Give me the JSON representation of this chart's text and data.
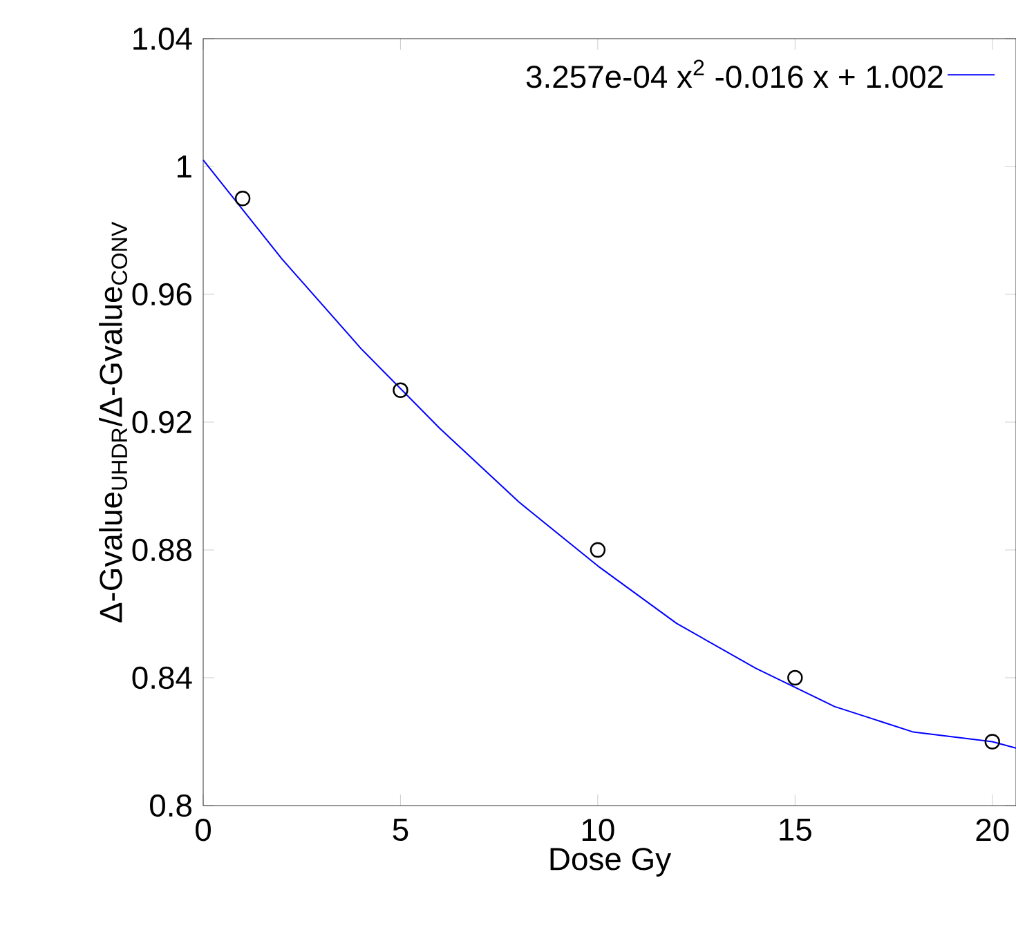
{
  "chart_data": {
    "type": "scatter",
    "xlabel": "Dose Gy",
    "ylabel": "Δ-Gvalue$_{UHDR}$/Δ-Gvalue$_{CONV}$",
    "xlim": [
      0,
      20.6
    ],
    "ylim": [
      0.8,
      1.04
    ],
    "xticks": [
      0,
      5,
      10,
      15,
      20
    ],
    "yticks": [
      0.8,
      0.84,
      0.88,
      0.92,
      0.96,
      1,
      1.04
    ],
    "legend": "top right",
    "grid": false,
    "series": [
      {
        "marker": "circle",
        "color": "#000000",
        "x": [
          1,
          5,
          10,
          15,
          20
        ],
        "values": [
          0.99,
          0.93,
          0.88,
          0.84,
          0.82
        ]
      },
      {
        "type": "line",
        "marker": "none",
        "name": "3.257e-04 x$^{2}$ -0.016 x + 1.002",
        "color": "#0000ff",
        "x": [
          0,
          2,
          4,
          6,
          8,
          10,
          12,
          14,
          16,
          18,
          20,
          20.6
        ],
        "values": [
          1.002,
          0.971,
          0.943,
          0.918,
          0.895,
          0.875,
          0.857,
          0.843,
          0.831,
          0.823,
          0.82,
          0.818
        ]
      }
    ]
  }
}
